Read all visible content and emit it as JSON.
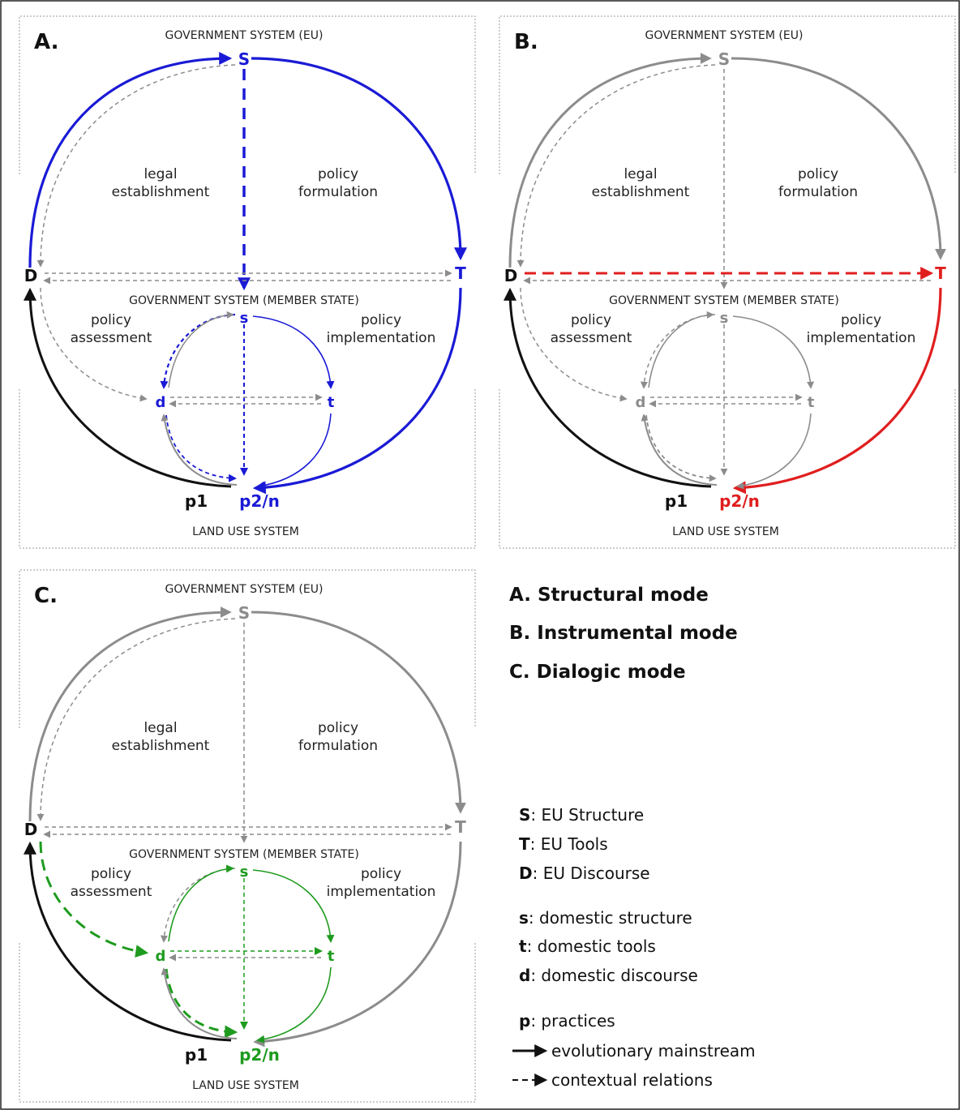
{
  "colors": {
    "gray": "#8c8c8c",
    "blue": "#1a1ad6",
    "red": "#e01e1e",
    "green": "#1e9b1e",
    "black": "#111111"
  },
  "panels": [
    {
      "id": "A",
      "label": "A.",
      "eu_system": "GOVERNMENT SYSTEM (EU)",
      "ms_system": "GOVERNMENT SYSTEM (MEMBER STATE)",
      "land_system": "LAND USE SYSTEM",
      "legal": [
        "legal",
        "establishment"
      ],
      "formulation": [
        "policy",
        "formulation"
      ],
      "assessment": [
        "policy",
        "assessment"
      ],
      "implementation": [
        "policy",
        "implementation"
      ],
      "nodes": {
        "S": "S",
        "T": "T",
        "D": "D",
        "s": "s",
        "t": "t",
        "d": "d",
        "p1": "p1",
        "p2n": "p2/n"
      }
    },
    {
      "id": "B",
      "label": "B.",
      "eu_system": "GOVERNMENT SYSTEM (EU)",
      "ms_system": "GOVERNMENT SYSTEM (MEMBER STATE)",
      "land_system": "LAND USE SYSTEM",
      "legal": [
        "legal",
        "establishment"
      ],
      "formulation": [
        "policy",
        "formulation"
      ],
      "assessment": [
        "policy",
        "assessment"
      ],
      "implementation": [
        "policy",
        "implementation"
      ],
      "nodes": {
        "S": "S",
        "T": "T",
        "D": "D",
        "s": "s",
        "t": "t",
        "d": "d",
        "p1": "p1",
        "p2n": "p2/n"
      }
    },
    {
      "id": "C",
      "label": "C.",
      "eu_system": "GOVERNMENT SYSTEM (EU)",
      "ms_system": "GOVERNMENT SYSTEM (MEMBER STATE)",
      "land_system": "LAND USE SYSTEM",
      "legal": [
        "legal",
        "establishment"
      ],
      "formulation": [
        "policy",
        "formulation"
      ],
      "assessment": [
        "policy",
        "assessment"
      ],
      "implementation": [
        "policy",
        "implementation"
      ],
      "nodes": {
        "S": "S",
        "T": "T",
        "D": "D",
        "s": "s",
        "t": "t",
        "d": "d",
        "p1": "p1",
        "p2n": "p2/n"
      }
    }
  ],
  "modes": [
    "A. Structural mode",
    "B. Instrumental mode",
    "C. Dialogic mode"
  ],
  "legend": {
    "items": [
      {
        "key": "S",
        "text": ": EU Structure"
      },
      {
        "key": "T",
        "text": ": EU Tools"
      },
      {
        "key": "D",
        "text": ": EU Discourse"
      },
      {
        "key": "s",
        "text": ": domestic structure"
      },
      {
        "key": "t",
        "text": ": domestic tools"
      },
      {
        "key": "d",
        "text": ": domestic discourse"
      },
      {
        "key": "p",
        "text": ": practices"
      }
    ],
    "solid": "evolutionary mainstream",
    "dashed": "contextual relations"
  }
}
